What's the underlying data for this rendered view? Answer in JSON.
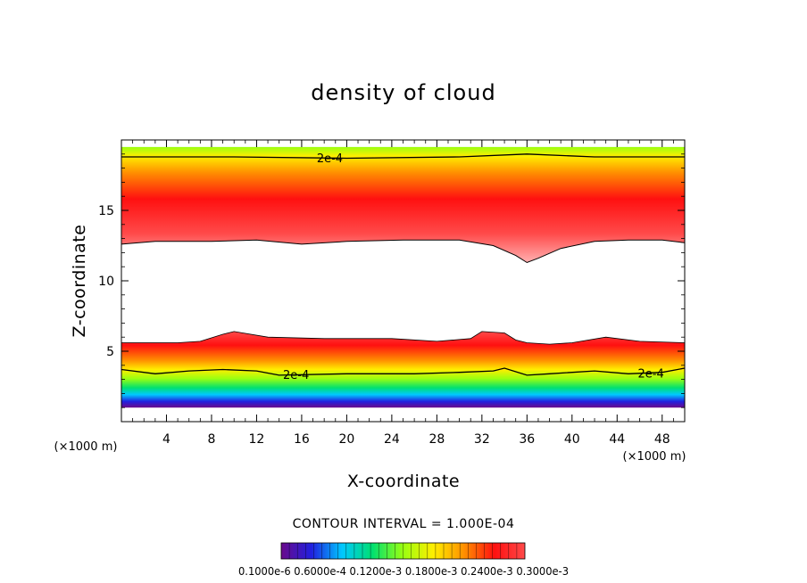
{
  "chart_data": {
    "type": "contour",
    "title": "density of cloud",
    "xlabel": "X-coordinate",
    "ylabel": "Z-coordinate",
    "x_unit": "(×1000 m)",
    "y_unit": "(×1000 m)",
    "xlim": [
      0,
      50
    ],
    "ylim": [
      0,
      20
    ],
    "x_ticks": [
      4,
      8,
      12,
      16,
      20,
      24,
      28,
      32,
      36,
      40,
      44,
      48
    ],
    "y_ticks": [
      5,
      10,
      15
    ],
    "contour_interval_text": "CONTOUR INTERVAL = 1.000E-04",
    "contour_label": "2e-4",
    "colorbar_labels": [
      "0.1000e-6",
      "0.6000e-4",
      "0.1200e-3",
      "0.1800e-3",
      "0.2400e-3",
      "0.3000e-3"
    ],
    "colorbar_text": "0.1000e-6 0.6000e-4 0.1200e-3 0.1800e-3 0.2400e-3 0.3000e-3",
    "colormap": [
      "#6a0a8a",
      "#2020e0",
      "#00c8ff",
      "#00e070",
      "#9aff10",
      "#ffee00",
      "#ff9000",
      "#ff1010",
      "#ff4a4a"
    ],
    "upper_cloud": {
      "top_km": 19.5,
      "contour_2e4_km": [
        [
          0,
          18.8
        ],
        [
          10,
          18.8
        ],
        [
          20,
          18.7
        ],
        [
          30,
          18.8
        ],
        [
          36,
          19.0
        ],
        [
          42,
          18.8
        ],
        [
          50,
          18.8
        ]
      ],
      "max_km": 15.0,
      "base_km": [
        [
          0,
          12.6
        ],
        [
          3,
          12.8
        ],
        [
          8,
          12.8
        ],
        [
          12,
          12.9
        ],
        [
          16,
          12.6
        ],
        [
          20,
          12.8
        ],
        [
          25,
          12.9
        ],
        [
          30,
          12.9
        ],
        [
          33,
          12.5
        ],
        [
          35,
          11.8
        ],
        [
          36,
          11.3
        ],
        [
          37,
          11.6
        ],
        [
          39,
          12.3
        ],
        [
          42,
          12.8
        ],
        [
          45,
          12.9
        ],
        [
          48,
          12.9
        ],
        [
          50,
          12.7
        ]
      ]
    },
    "lower_cloud": {
      "top_km": [
        [
          0,
          5.6
        ],
        [
          5,
          5.6
        ],
        [
          7,
          5.7
        ],
        [
          9,
          6.2
        ],
        [
          10,
          6.4
        ],
        [
          13,
          6.0
        ],
        [
          18,
          5.9
        ],
        [
          24,
          5.9
        ],
        [
          28,
          5.7
        ],
        [
          31,
          5.9
        ],
        [
          32,
          6.4
        ],
        [
          34,
          6.3
        ],
        [
          35,
          5.8
        ],
        [
          36,
          5.6
        ],
        [
          38,
          5.5
        ],
        [
          40,
          5.6
        ],
        [
          43,
          6.0
        ],
        [
          46,
          5.7
        ],
        [
          50,
          5.6
        ]
      ],
      "contour_2e4_km": [
        [
          0,
          3.7
        ],
        [
          3,
          3.4
        ],
        [
          6,
          3.6
        ],
        [
          9,
          3.7
        ],
        [
          12,
          3.6
        ],
        [
          14,
          3.3
        ],
        [
          20,
          3.4
        ],
        [
          26,
          3.4
        ],
        [
          30,
          3.5
        ],
        [
          33,
          3.6
        ],
        [
          34,
          3.8
        ],
        [
          36,
          3.3
        ],
        [
          38,
          3.4
        ],
        [
          42,
          3.6
        ],
        [
          45,
          3.4
        ],
        [
          48,
          3.5
        ],
        [
          50,
          3.8
        ]
      ],
      "base_km": 1.0
    }
  }
}
